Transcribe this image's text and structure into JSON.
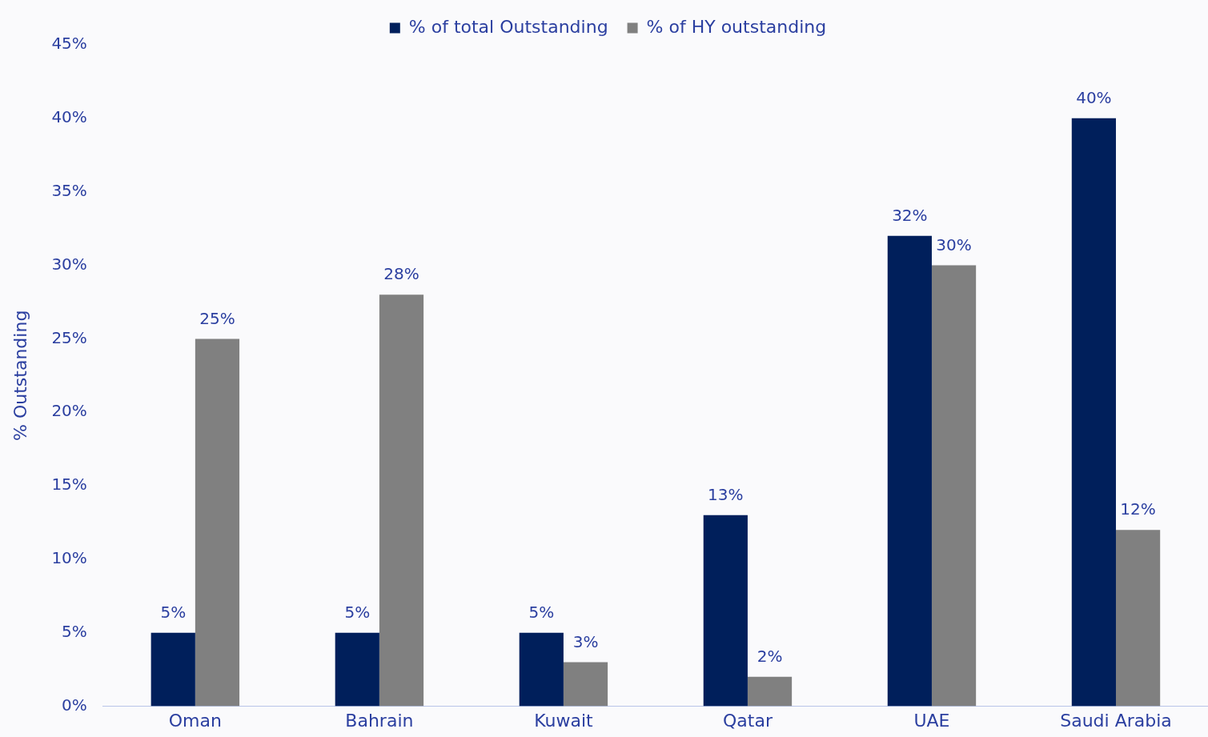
{
  "chart_data": {
    "type": "bar",
    "ylabel": "% Outstanding",
    "categories": [
      "Oman",
      "Bahrain",
      "Kuwait",
      "Qatar",
      "UAE",
      "Saudi Arabia"
    ],
    "series": [
      {
        "name": "% of total Outstanding",
        "color": "#001f5b",
        "values": [
          5,
          5,
          5,
          13,
          32,
          40
        ],
        "value_labels": [
          "5%",
          "5%",
          "5%",
          "13%",
          "32%",
          "40%"
        ]
      },
      {
        "name": "% of HY outstanding",
        "color": "#808080",
        "values": [
          25,
          28,
          3,
          2,
          30,
          12
        ],
        "value_labels": [
          "25%",
          "28%",
          "3%",
          "2%",
          "30%",
          "12%"
        ]
      }
    ],
    "ylim": [
      0,
      45
    ],
    "yticks": [
      {
        "value": 0,
        "label": "0%"
      },
      {
        "value": 5,
        "label": "5%"
      },
      {
        "value": 10,
        "label": "10%"
      },
      {
        "value": 15,
        "label": "15%"
      },
      {
        "value": 20,
        "label": "20%"
      },
      {
        "value": 25,
        "label": "25%"
      },
      {
        "value": 30,
        "label": "30%"
      },
      {
        "value": 35,
        "label": "35%"
      },
      {
        "value": 40,
        "label": "40%"
      },
      {
        "value": 45,
        "label": "45%"
      }
    ],
    "grid": false,
    "legend": "top"
  }
}
